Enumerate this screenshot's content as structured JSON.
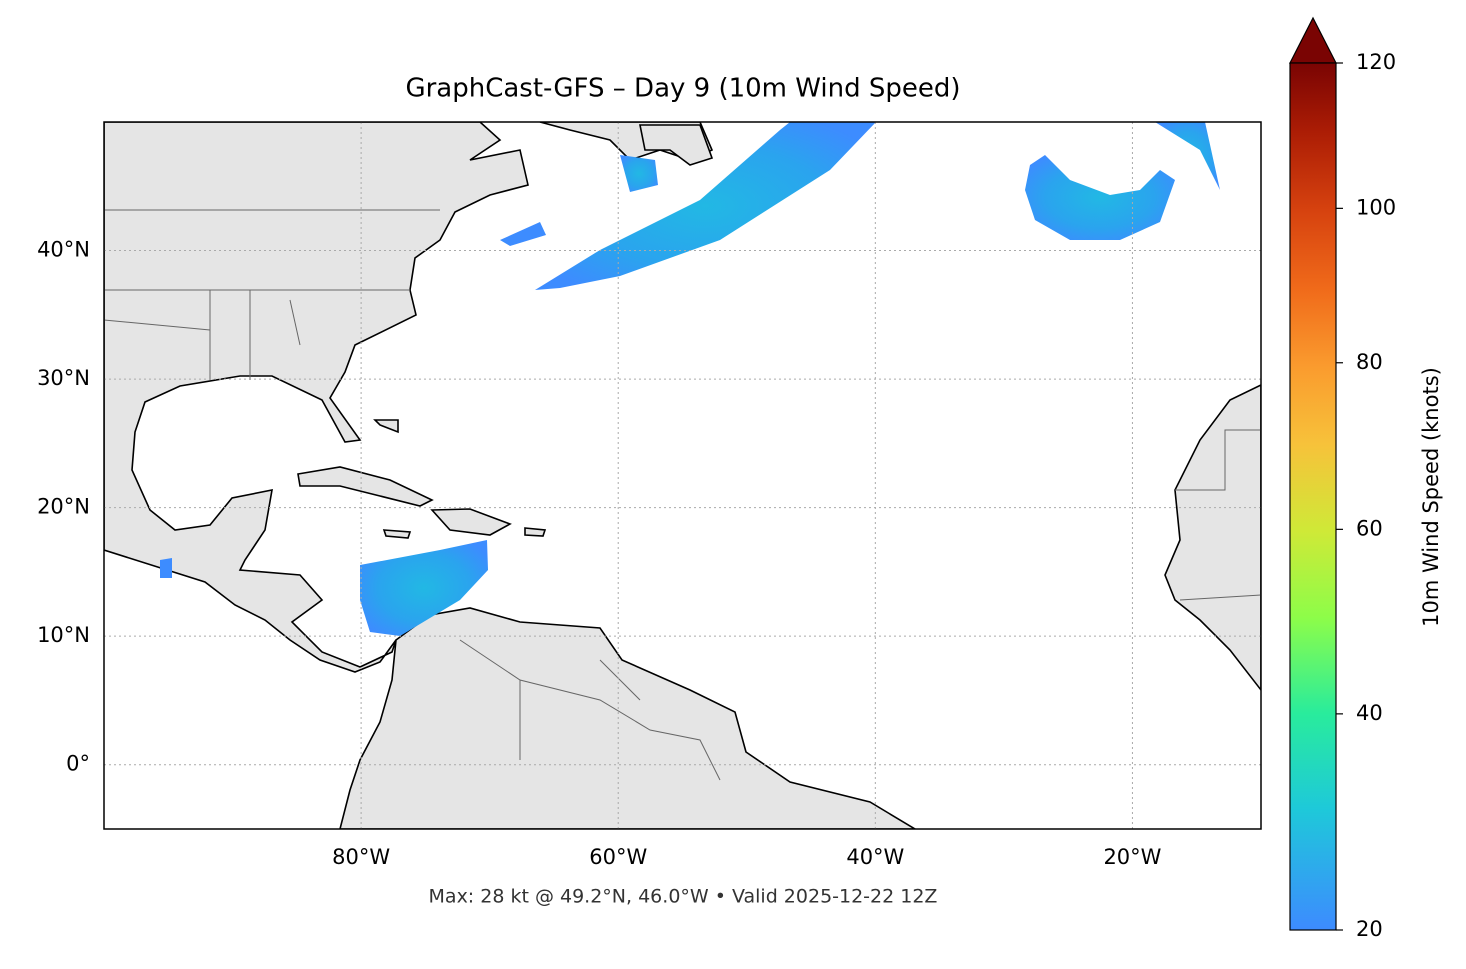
{
  "chart_data": {
    "type": "map",
    "title": "GraphCast-GFS – Day 9 (10m Wind Speed)",
    "annotation": "Max: 28 kt @ 49.2°N, 46.0°W • Valid 2025-12-22 12Z",
    "xlim": [
      -100,
      -10
    ],
    "ylim": [
      -5,
      50
    ],
    "xticks": [
      {
        "value": -80,
        "label": "80°W"
      },
      {
        "value": -60,
        "label": "60°W"
      },
      {
        "value": -40,
        "label": "40°W"
      },
      {
        "value": -20,
        "label": "20°W"
      }
    ],
    "yticks": [
      {
        "value": 0,
        "label": "0°"
      },
      {
        "value": 10,
        "label": "10°N"
      },
      {
        "value": 20,
        "label": "20°N"
      },
      {
        "value": 30,
        "label": "30°N"
      },
      {
        "value": 40,
        "label": "40°N"
      }
    ],
    "grid": true,
    "colorbar": {
      "label": "10m Wind Speed (knots)",
      "lim": [
        20,
        120
      ],
      "ticks": [
        20,
        40,
        60,
        80,
        100,
        120
      ],
      "extend": "max"
    }
  }
}
